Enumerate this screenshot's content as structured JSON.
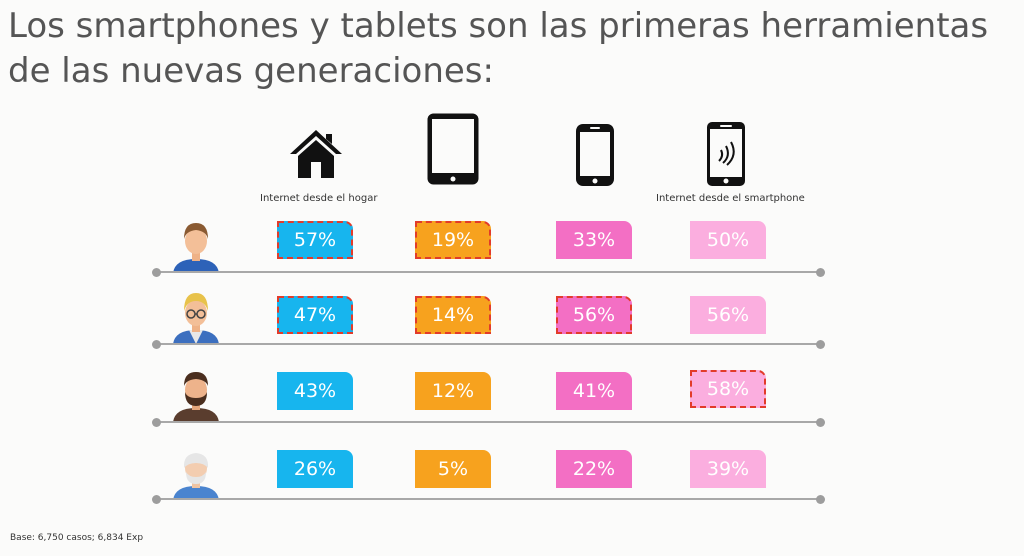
{
  "title": {
    "line1": "Los smartphones y tablets son las primeras herramientas",
    "line2": "de las nuevas generaciones:"
  },
  "columns": [
    {
      "label": "Internet desde el hogar",
      "icon": "house-icon",
      "color": "#17b5ee"
    },
    {
      "label": "",
      "icon": "tablet-icon",
      "color": "#f7a21e"
    },
    {
      "label": "",
      "icon": "mobile-phone-icon",
      "color": "#f36fc4"
    },
    {
      "label": "Internet desde el smartphone",
      "icon": "smartphone-wifi-icon",
      "color": "#fbaedf"
    }
  ],
  "rows": [
    {
      "avatar": "young-man-avatar-icon",
      "values": [
        "57%",
        "19%",
        "33%",
        "50%"
      ],
      "highlighted": [
        true,
        true,
        false,
        false
      ]
    },
    {
      "avatar": "blond-glasses-man-avatar-icon",
      "values": [
        "47%",
        "14%",
        "56%",
        "56%"
      ],
      "highlighted": [
        true,
        true,
        true,
        false
      ]
    },
    {
      "avatar": "bearded-man-avatar-icon",
      "values": [
        "43%",
        "12%",
        "41%",
        "58%"
      ],
      "highlighted": [
        false,
        false,
        false,
        true
      ]
    },
    {
      "avatar": "elderly-man-avatar-icon",
      "values": [
        "26%",
        "5%",
        "22%",
        "39%"
      ],
      "highlighted": [
        false,
        false,
        false,
        false
      ]
    }
  ],
  "highlight_color": "#e23b2a",
  "footer": "Base: 6,750 casos;  6,834 Exp"
}
